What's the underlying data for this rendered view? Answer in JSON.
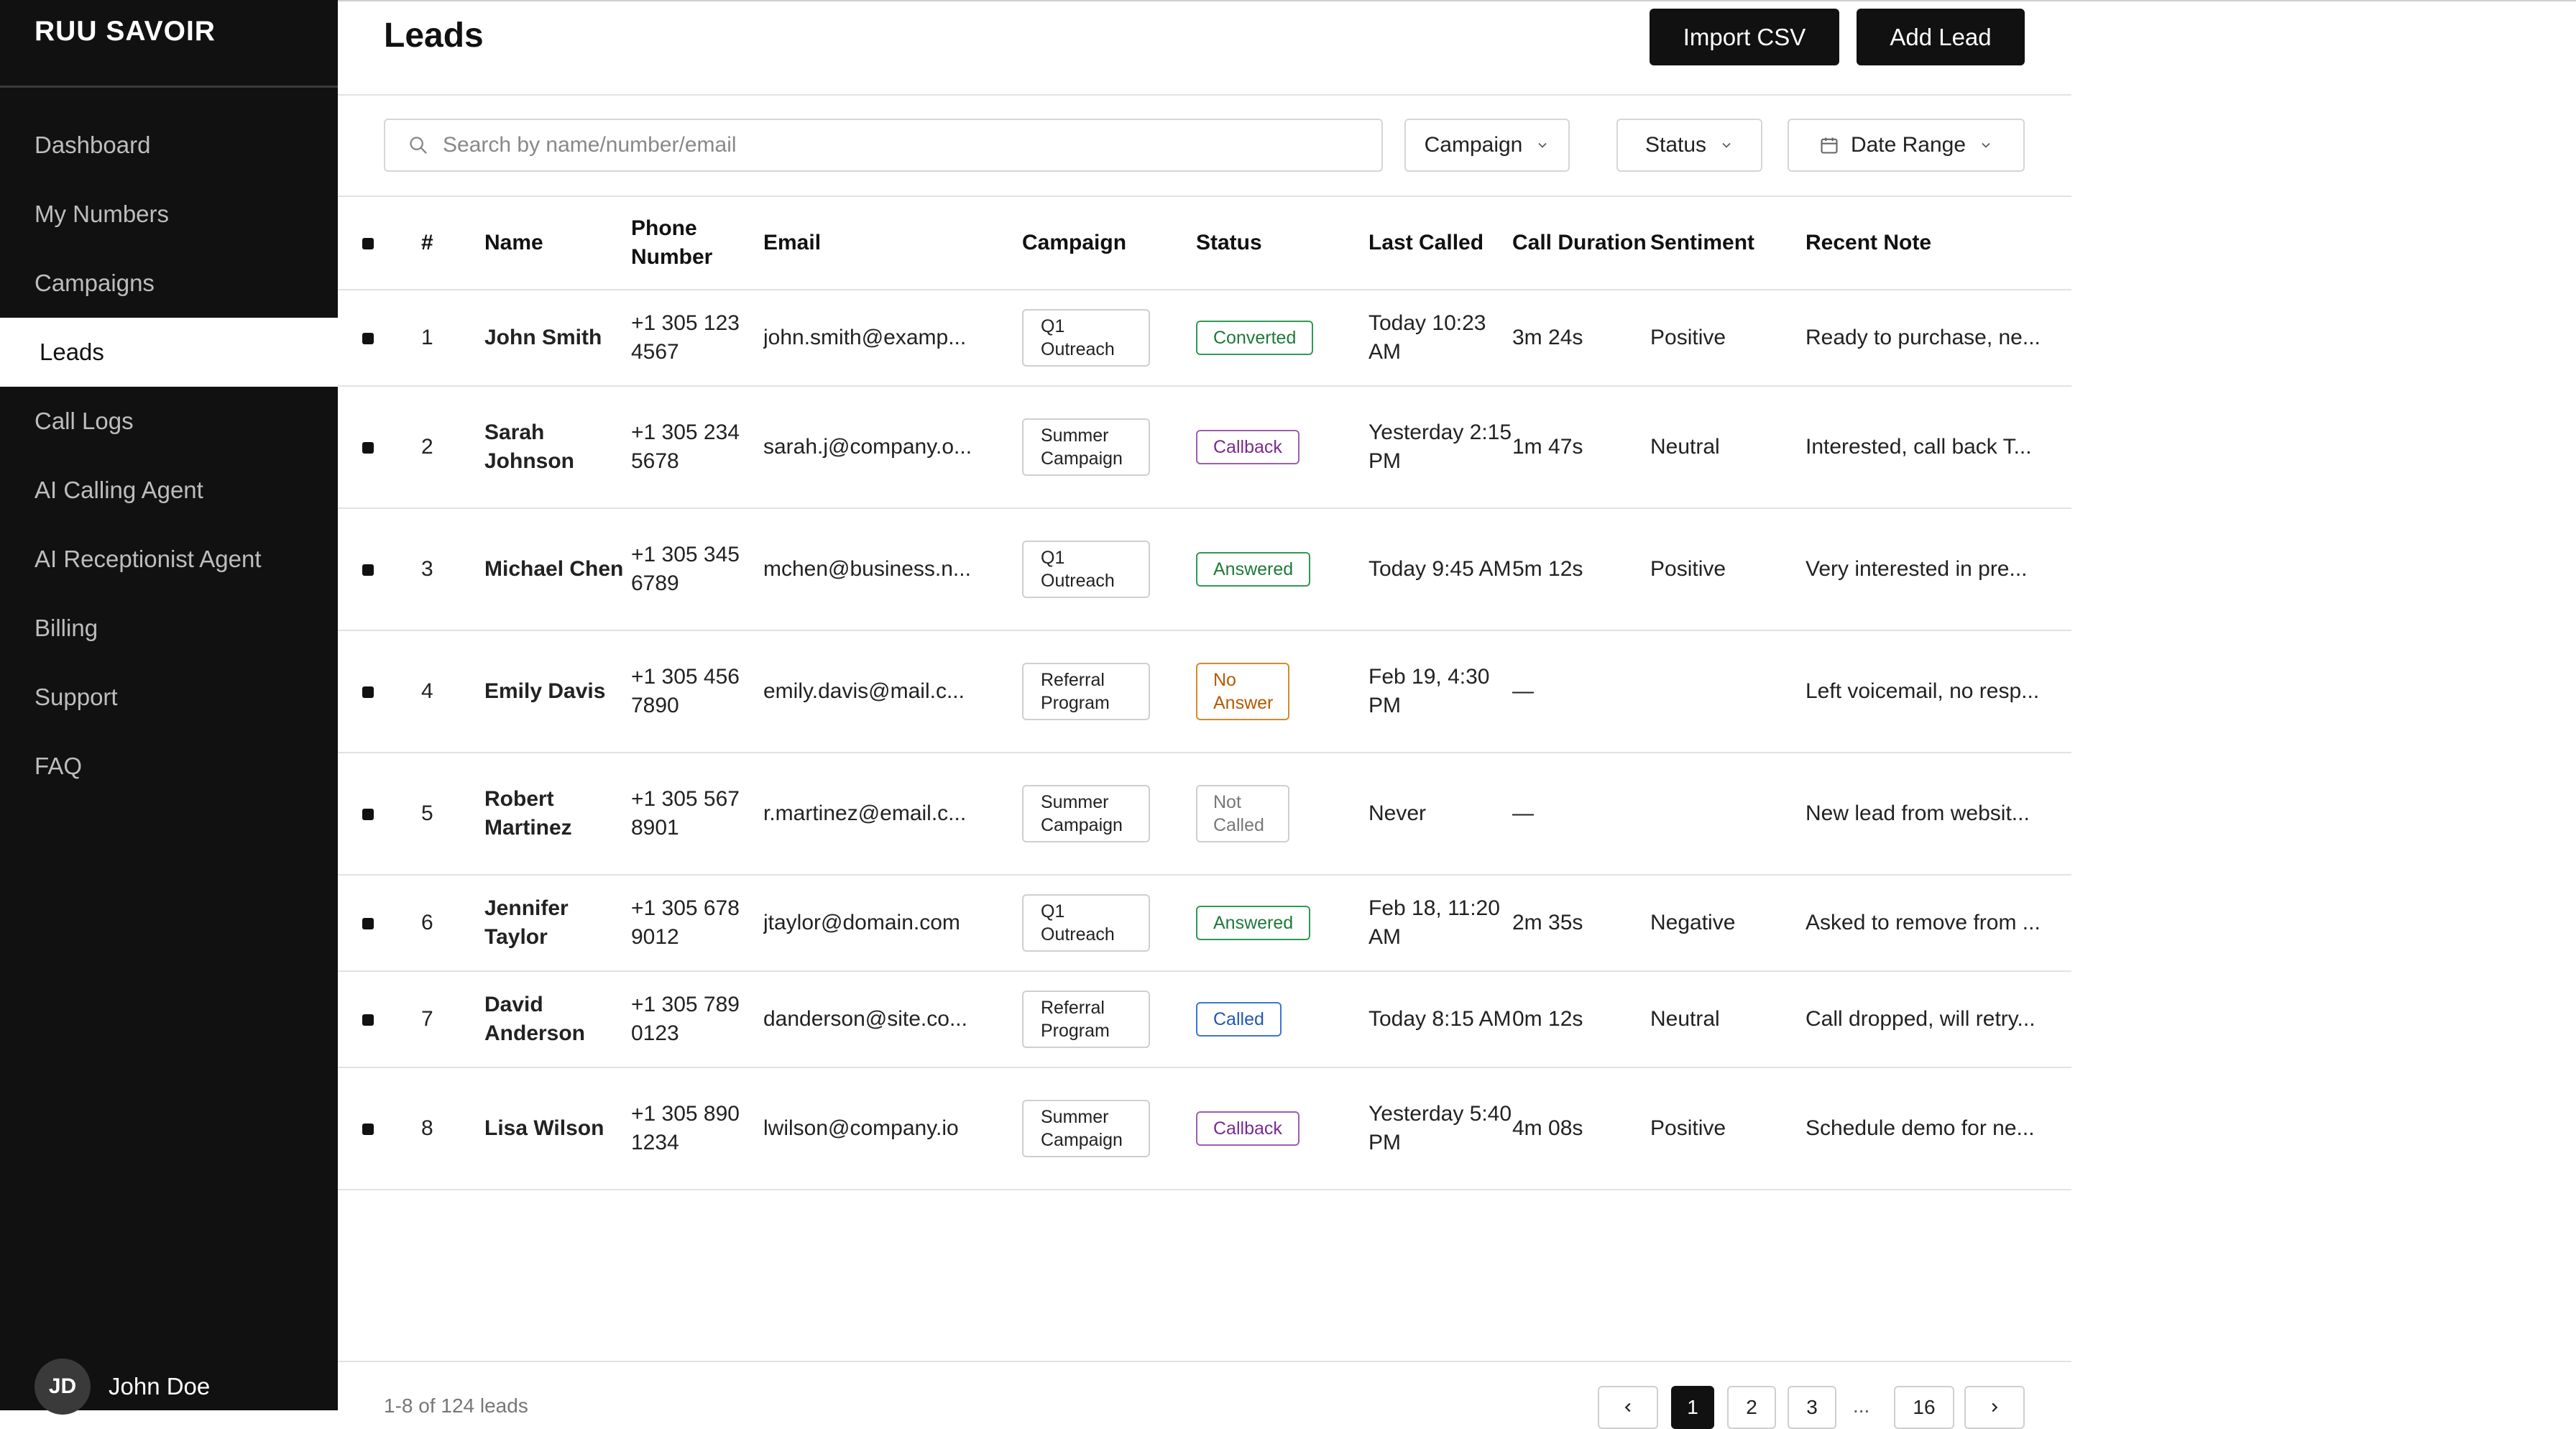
{
  "brand": "RUU SAVOIR",
  "nav": [
    {
      "label": "Dashboard",
      "active": false
    },
    {
      "label": "My Numbers",
      "active": false
    },
    {
      "label": "Campaigns",
      "active": false
    },
    {
      "label": "Leads",
      "active": true
    },
    {
      "label": "Call Logs",
      "active": false
    },
    {
      "label": "AI Calling Agent",
      "active": false
    },
    {
      "label": "AI Receptionist Agent",
      "active": false
    },
    {
      "label": "Billing",
      "active": false
    },
    {
      "label": "Support",
      "active": false
    },
    {
      "label": "FAQ",
      "active": false
    }
  ],
  "user": {
    "initials": "JD",
    "name": "John Doe"
  },
  "header": {
    "title": "Leads",
    "import_label": "Import CSV",
    "add_label": "Add Lead"
  },
  "filters": {
    "search_placeholder": "Search by name/number/email",
    "campaign_label": "Campaign",
    "status_label": "Status",
    "date_label": "Date Range"
  },
  "table": {
    "columns": {
      "index": "#",
      "name": "Name",
      "phone": "Phone Number",
      "email": "Email",
      "campaign": "Campaign",
      "status": "Status",
      "last_called": "Last Called",
      "duration": "Call Duration",
      "sentiment": "Sentiment",
      "note": "Recent Note"
    },
    "rows": [
      {
        "index": "1",
        "name": "John Smith",
        "phone": "+1 305 123 4567",
        "email": "john.smith@examp...",
        "campaign": "Q1 Outreach",
        "status": "Converted",
        "status_color": "#1e7a3a",
        "last_called": "Today 10:23 AM",
        "duration": "3m 24s",
        "sentiment": "Positive",
        "note": "Ready to purchase, ne..."
      },
      {
        "index": "2",
        "name": "Sarah Johnson",
        "phone": "+1 305 234 5678",
        "email": "sarah.j@company.o...",
        "campaign": "Summer Campaign",
        "status": "Callback",
        "status_color": "#7a2a90",
        "last_called": "Yesterday 2:15 PM",
        "duration": "1m 47s",
        "sentiment": "Neutral",
        "note": "Interested, call back T..."
      },
      {
        "index": "3",
        "name": "Michael Chen",
        "phone": "+1 305 345 6789",
        "email": "mchen@business.n...",
        "campaign": "Q1 Outreach",
        "status": "Answered",
        "status_color": "#1e7a3a",
        "last_called": "Today 9:45 AM",
        "duration": "5m 12s",
        "sentiment": "Positive",
        "note": "Very interested in pre..."
      },
      {
        "index": "4",
        "name": "Emily Davis",
        "phone": "+1 305 456 7890",
        "email": "emily.davis@mail.c...",
        "campaign": "Referral Program",
        "status": "No Answer",
        "status_color": "#b55a00",
        "last_called": "Feb 19, 4:30 PM",
        "duration": "—",
        "sentiment": "",
        "note": "Left voicemail, no resp..."
      },
      {
        "index": "5",
        "name": "Robert Martinez",
        "phone": "+1 305 567 8901",
        "email": "r.martinez@email.c...",
        "campaign": "Summer Campaign",
        "status": "Not Called",
        "status_color": "#777777",
        "last_called": "Never",
        "duration": "—",
        "sentiment": "",
        "note": "New lead from websit..."
      },
      {
        "index": "6",
        "name": "Jennifer Taylor",
        "phone": "+1 305 678 9012",
        "email": "jtaylor@domain.com",
        "campaign": "Q1 Outreach",
        "status": "Answered",
        "status_color": "#1e7a3a",
        "last_called": "Feb 18, 11:20 AM",
        "duration": "2m 35s",
        "sentiment": "Negative",
        "note": "Asked to remove from ..."
      },
      {
        "index": "7",
        "name": "David Anderson",
        "phone": "+1 305 789 0123",
        "email": "danderson@site.co...",
        "campaign": "Referral Program",
        "status": "Called",
        "status_color": "#2557b5",
        "last_called": "Today 8:15 AM",
        "duration": "0m 12s",
        "sentiment": "Neutral",
        "note": "Call dropped, will retry..."
      },
      {
        "index": "8",
        "name": "Lisa Wilson",
        "phone": "+1 305 890 1234",
        "email": "lwilson@company.io",
        "campaign": "Summer Campaign",
        "status": "Callback",
        "status_color": "#7a2a90",
        "last_called": "Yesterday 5:40 PM",
        "duration": "4m 08s",
        "sentiment": "Positive",
        "note": "Schedule demo for ne..."
      }
    ]
  },
  "footer": {
    "summary": "1-8 of 124 leads",
    "pages": [
      "1",
      "2",
      "3",
      "16"
    ],
    "ellipsis": "...",
    "current_page": "1"
  }
}
